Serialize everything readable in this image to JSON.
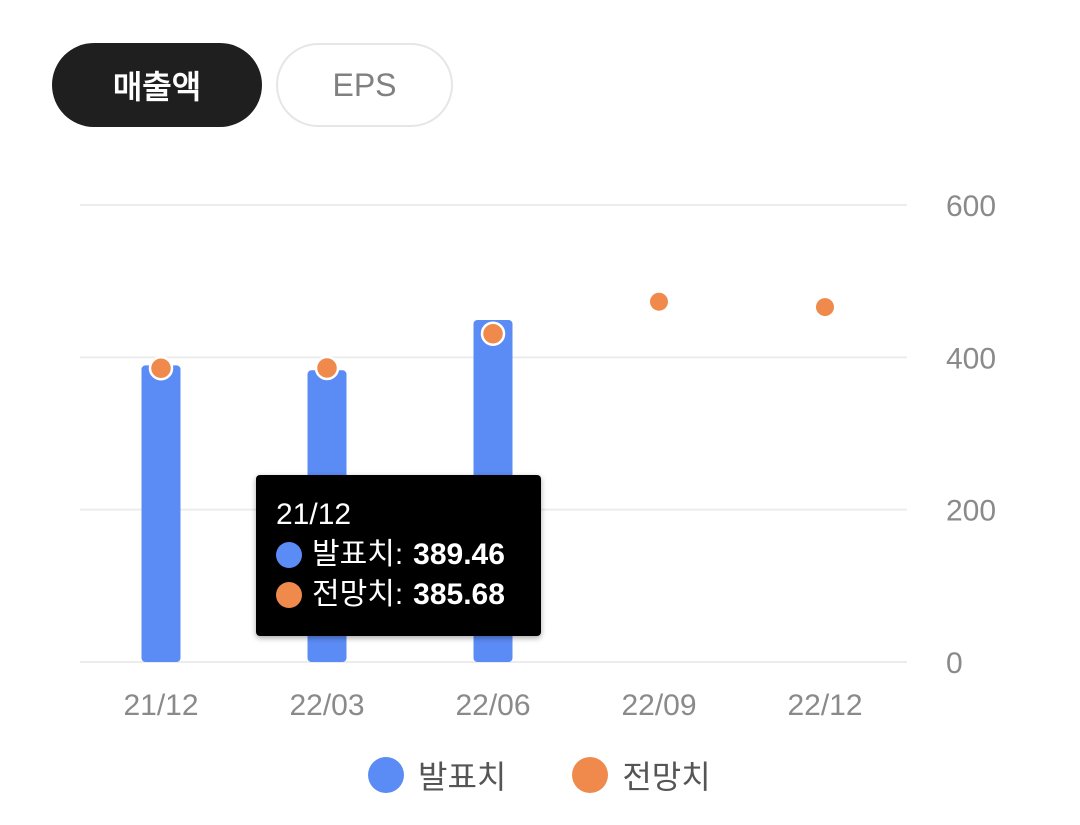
{
  "tabs": [
    {
      "label": "매출액",
      "active": true
    },
    {
      "label": "EPS",
      "active": false
    }
  ],
  "colors": {
    "actual": "#5b8cf5",
    "estimate": "#ef8a4c",
    "grid": "#ececec",
    "axis_text": "#8a8a8a"
  },
  "tooltip": {
    "title": "21/12",
    "rows": [
      {
        "label": "발표치",
        "value": "389.46"
      },
      {
        "label": "전망치",
        "value": "385.68"
      }
    ]
  },
  "chart_data": {
    "type": "bar",
    "categories": [
      "21/12",
      "22/03",
      "22/06",
      "22/09",
      "22/12"
    ],
    "series": [
      {
        "name": "발표치",
        "kind": "bar",
        "values": [
          389.46,
          383,
          449,
          null,
          null
        ]
      },
      {
        "name": "전망치",
        "kind": "scatter",
        "values": [
          385.68,
          386,
          431,
          473,
          466
        ]
      }
    ],
    "yticks": [
      0,
      200,
      400,
      600
    ],
    "ylim": [
      0,
      600
    ],
    "grid": true,
    "legend": "bottom-center"
  }
}
